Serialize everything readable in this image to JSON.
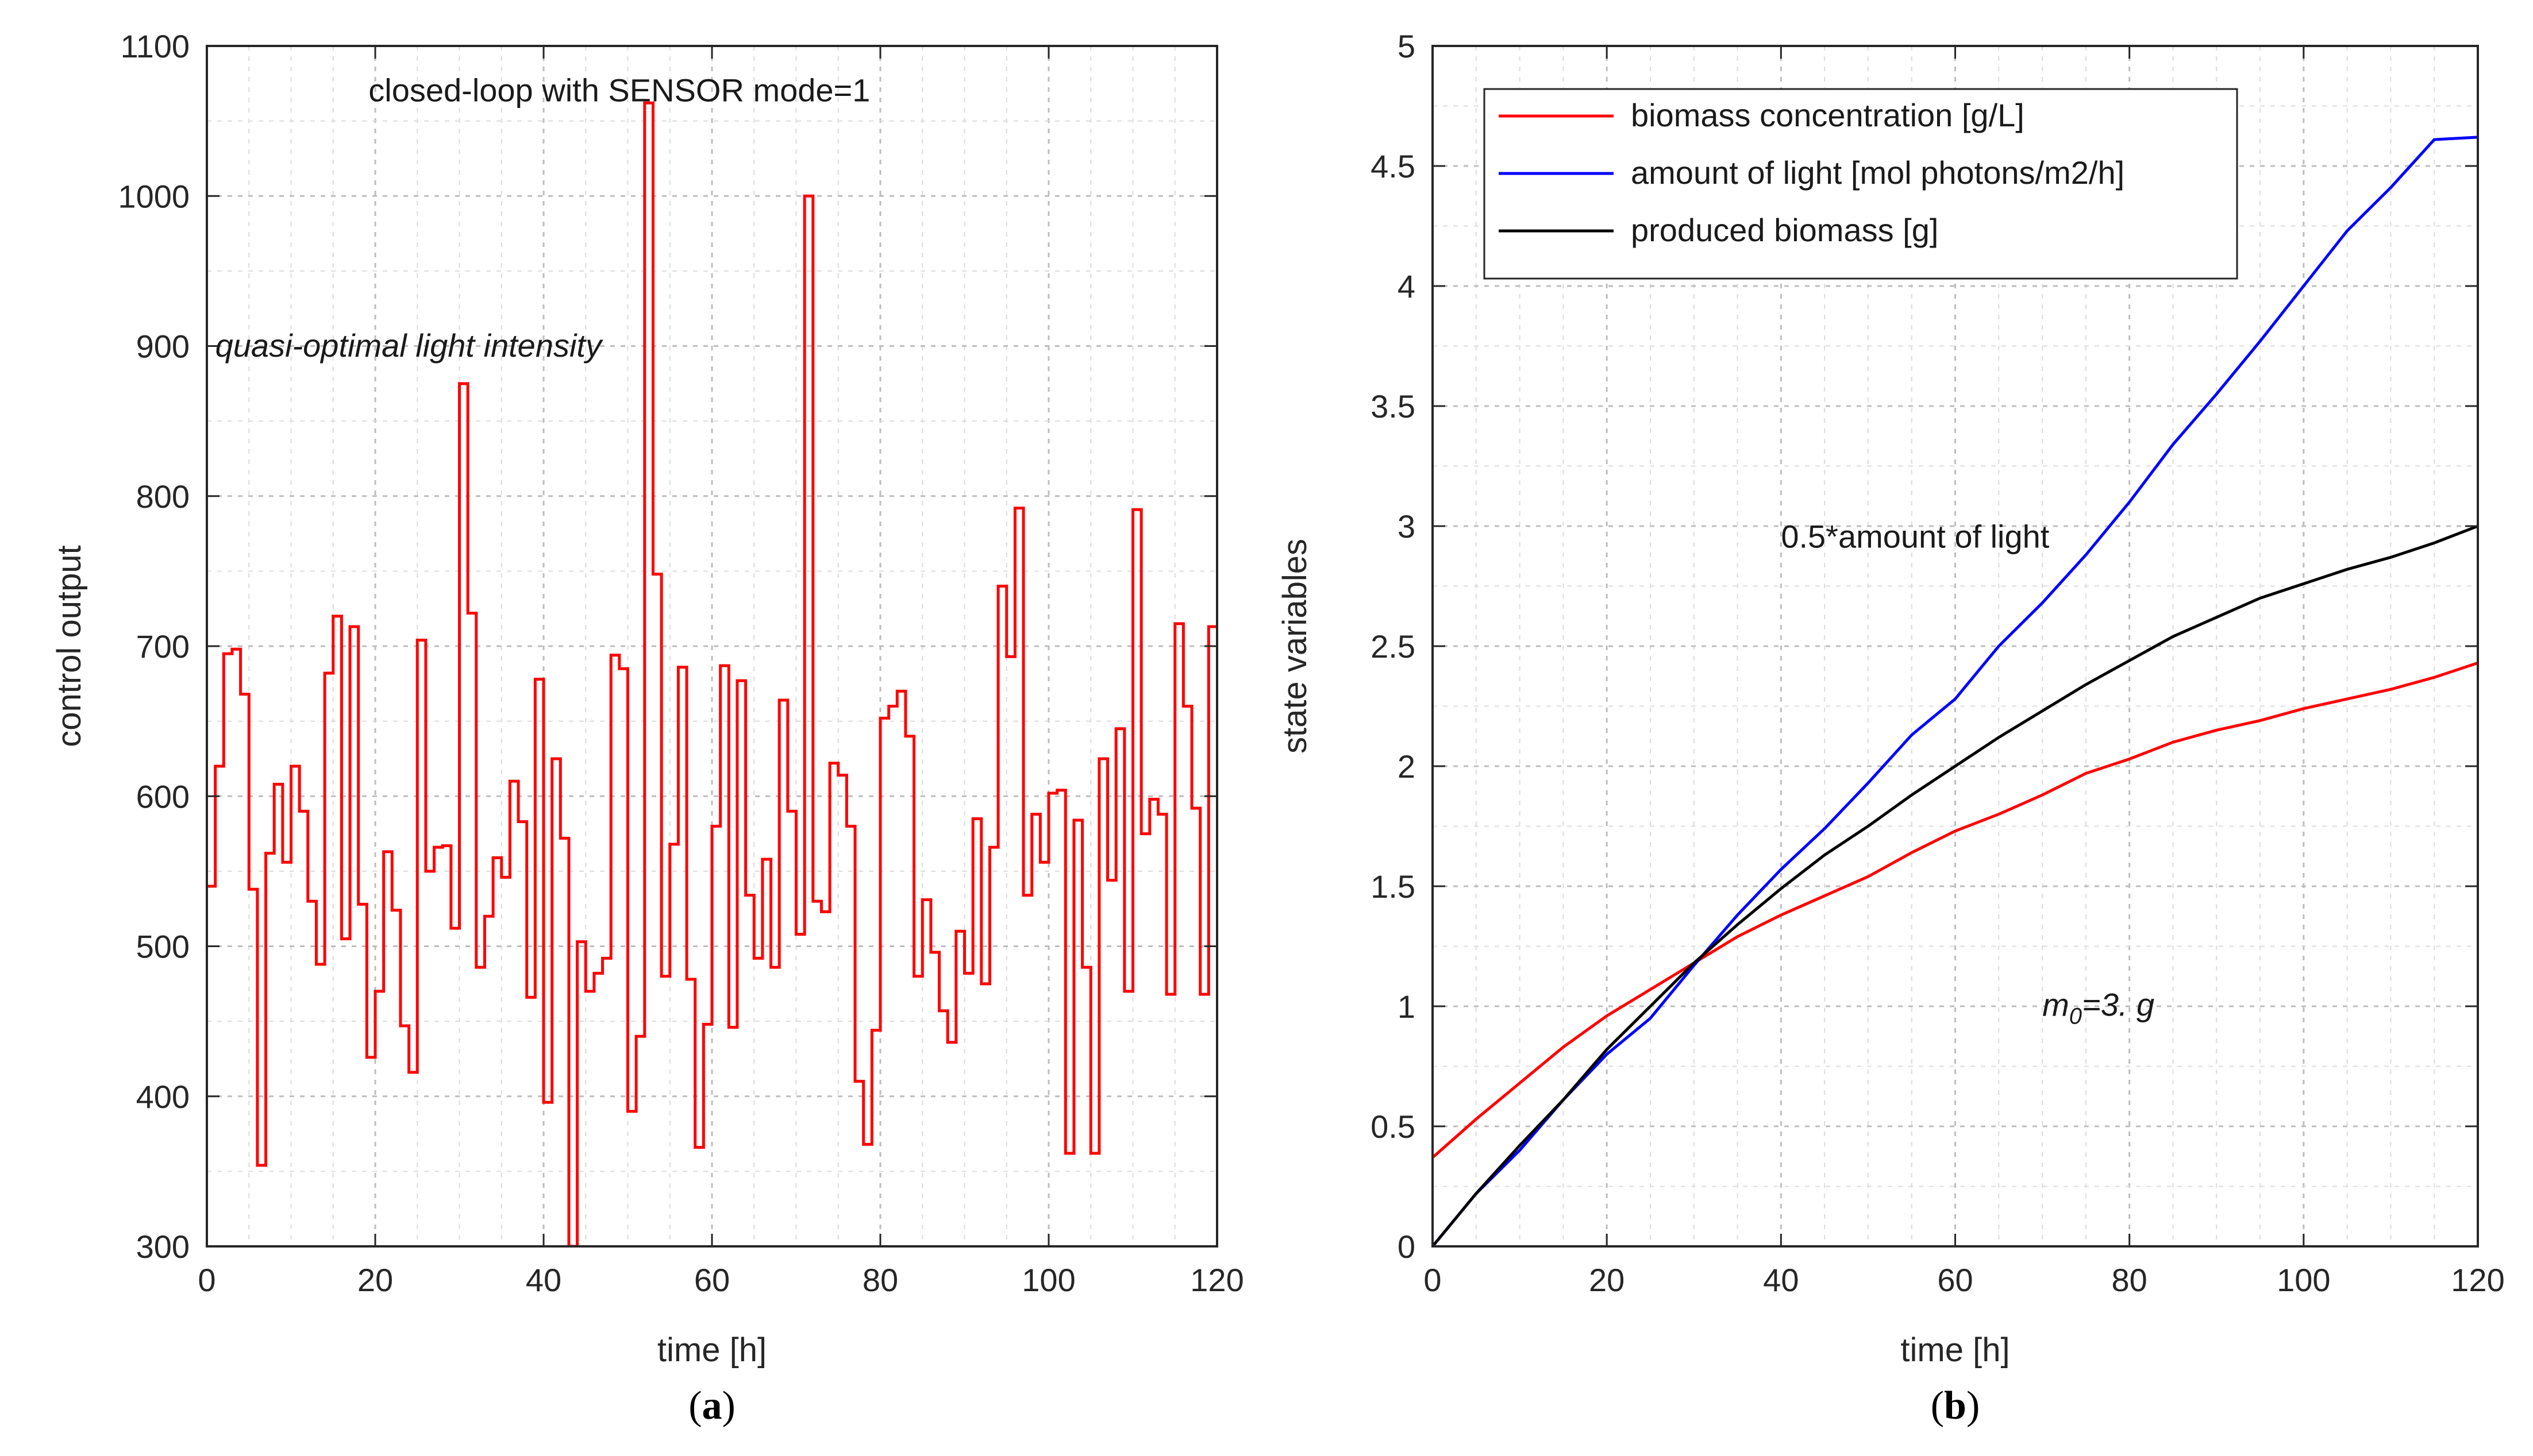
{
  "figure_title": "",
  "panel_labels": {
    "a_open": "(",
    "a_letter": "a",
    "a_close": ")",
    "b_open": "(",
    "b_letter": "b",
    "b_close": ")"
  },
  "chart_data": [
    {
      "id": "a",
      "type": "line",
      "step": true,
      "title": "",
      "xlabel": "time [h]",
      "ylabel": "control output",
      "xlim": [
        0,
        120
      ],
      "ylim": [
        300,
        1100
      ],
      "xticks": [
        0,
        20,
        40,
        60,
        80,
        100,
        120
      ],
      "yticks": [
        300,
        400,
        500,
        600,
        700,
        800,
        900,
        1000,
        1100
      ],
      "grid": true,
      "annotations": [
        {
          "text": "closed-loop with SENSOR mode=1",
          "style": "normal"
        },
        {
          "text": "quasi-optimal light intensity",
          "style": "italic"
        }
      ],
      "series": [
        {
          "name": "control output",
          "color": "#ff0000",
          "x": [
            0,
            1,
            2,
            3,
            4,
            5,
            6,
            7,
            8,
            9,
            10,
            11,
            12,
            13,
            14,
            15,
            16,
            17,
            18,
            19,
            20,
            21,
            22,
            23,
            24,
            25,
            26,
            27,
            28,
            29,
            30,
            31,
            32,
            33,
            34,
            35,
            36,
            37,
            38,
            39,
            40,
            41,
            42,
            43,
            44,
            45,
            46,
            47,
            48,
            49,
            50,
            51,
            52,
            53,
            54,
            55,
            56,
            57,
            58,
            59,
            60,
            61,
            62,
            63,
            64,
            65,
            66,
            67,
            68,
            69,
            70,
            71,
            72,
            73,
            74,
            75,
            76,
            77,
            78,
            79,
            80,
            81,
            82,
            83,
            84,
            85,
            86,
            87,
            88,
            89,
            90,
            91,
            92,
            93,
            94,
            95,
            96,
            97,
            98,
            99,
            100,
            101,
            102,
            103,
            104,
            105,
            106,
            107,
            108,
            109,
            110,
            111,
            112,
            113,
            114,
            115,
            116,
            117,
            118,
            119,
            120
          ],
          "values": [
            540,
            620,
            695,
            698,
            668,
            538,
            354,
            562,
            608,
            556,
            620,
            590,
            530,
            488,
            682,
            720,
            505,
            713,
            528,
            426,
            470,
            563,
            524,
            447,
            416,
            704,
            550,
            566,
            567,
            512,
            875,
            722,
            486,
            520,
            559,
            546,
            610,
            583,
            466,
            678,
            396,
            625,
            572,
            300,
            503,
            470,
            482,
            492,
            694,
            685,
            390,
            440,
            1062,
            748,
            480,
            568,
            686,
            478,
            366,
            448,
            580,
            687,
            446,
            677,
            534,
            492,
            558,
            486,
            664,
            590,
            508,
            1000,
            530,
            523,
            622,
            614,
            580,
            410,
            368,
            444,
            652,
            660,
            670,
            640,
            480,
            531,
            496,
            457,
            436,
            510,
            482,
            585,
            475,
            566,
            740,
            693,
            792,
            534,
            588,
            556,
            602,
            604,
            362,
            584,
            486,
            362,
            625,
            544,
            645,
            470,
            791,
            575,
            598,
            588,
            468,
            715,
            660,
            592,
            468,
            713,
            713
          ]
        }
      ]
    },
    {
      "id": "b",
      "type": "line",
      "title": "",
      "xlabel": "time [h]",
      "ylabel": "state variables",
      "xlim": [
        0,
        120
      ],
      "ylim": [
        0,
        5
      ],
      "xticks": [
        0,
        20,
        40,
        60,
        80,
        100,
        120
      ],
      "yticks": [
        0,
        0.5,
        1,
        1.5,
        2,
        2.5,
        3,
        3.5,
        4,
        4.5,
        5
      ],
      "ytick_labels": [
        "0",
        "0.5",
        "1",
        "1.5",
        "2",
        "2.5",
        "3",
        "3.5",
        "4",
        "4.5",
        "5"
      ],
      "grid": true,
      "legend_position": "top-left",
      "annotations": [
        {
          "text": "0.5*amount of light",
          "style": "normal"
        },
        {
          "text_main": "m",
          "text_sub": "0",
          "text_rest": "=3. g",
          "style": "italic"
        }
      ],
      "series": [
        {
          "name": "biomass concentration [g/L]",
          "color": "#ff0000",
          "x": [
            0,
            5,
            10,
            15,
            20,
            25,
            30,
            35,
            40,
            45,
            50,
            55,
            60,
            65,
            70,
            75,
            80,
            85,
            90,
            95,
            100,
            105,
            110,
            115,
            120
          ],
          "values": [
            0.37,
            0.53,
            0.68,
            0.83,
            0.96,
            1.07,
            1.18,
            1.29,
            1.38,
            1.46,
            1.54,
            1.64,
            1.73,
            1.8,
            1.88,
            1.97,
            2.03,
            2.1,
            2.15,
            2.19,
            2.24,
            2.28,
            2.32,
            2.37,
            2.43
          ]
        },
        {
          "name": "amount of light [mol photons/m2/h]",
          "color": "#0000ff",
          "x": [
            0,
            5,
            10,
            15,
            20,
            25,
            30,
            35,
            40,
            45,
            50,
            55,
            60,
            65,
            70,
            75,
            80,
            85,
            90,
            95,
            100,
            105,
            110,
            115,
            120
          ],
          "values": [
            0,
            0.22,
            0.4,
            0.61,
            0.8,
            0.95,
            1.17,
            1.38,
            1.57,
            1.74,
            1.93,
            2.13,
            2.28,
            2.5,
            2.68,
            2.88,
            3.1,
            3.34,
            3.55,
            3.77,
            4.0,
            4.23,
            4.41,
            4.61,
            4.62
          ]
        },
        {
          "name": "produced biomass [g]",
          "color": "#000000",
          "x": [
            0,
            5,
            10,
            15,
            20,
            25,
            30,
            35,
            40,
            45,
            50,
            55,
            60,
            65,
            70,
            75,
            80,
            85,
            90,
            95,
            100,
            105,
            110,
            115,
            120
          ],
          "values": [
            0,
            0.22,
            0.42,
            0.61,
            0.82,
            1.0,
            1.18,
            1.34,
            1.49,
            1.63,
            1.75,
            1.88,
            2.0,
            2.12,
            2.23,
            2.34,
            2.44,
            2.54,
            2.62,
            2.7,
            2.76,
            2.82,
            2.87,
            2.93,
            3.0
          ]
        }
      ]
    }
  ]
}
